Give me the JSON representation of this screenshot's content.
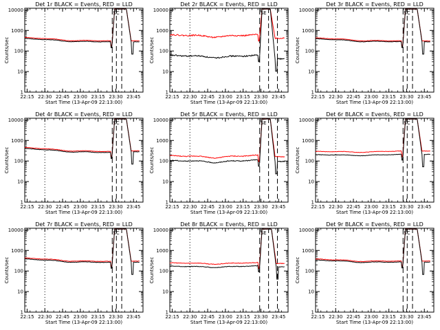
{
  "chart_data": {
    "type": "line",
    "x_axis": {
      "label": "Start Time (13-Apr-09 22:13:00)",
      "ticks": [
        "22:15",
        "22:30",
        "22:45",
        "23:00",
        "23:15",
        "23:30",
        "23:45"
      ],
      "tick_minutes": [
        2,
        17,
        32,
        47,
        62,
        77,
        92
      ],
      "range_minutes": [
        0,
        100
      ]
    },
    "y_axis": {
      "label": "Counts/sec",
      "scale": "log",
      "ticks": [
        "1",
        "10",
        "100",
        "1000",
        "10000"
      ],
      "range": [
        1,
        12000
      ]
    },
    "dotted_line_minutes": [
      17
    ],
    "dashed_line_minutes": [
      74,
      77.5,
      82
    ],
    "marker_labels": [
      "SC",
      "SE"
    ],
    "colors": {
      "events": "#000000",
      "lld": "#ff0000"
    },
    "panels": [
      {
        "title": "Det 1r BLACK = Events, RED = LLD",
        "marker": "SC",
        "base": 380,
        "end": 260,
        "wave": 0.12,
        "lld": 1.12,
        "noise": 0.02,
        "fall": 86,
        "post": 280,
        "dashed_minutes": [
          74,
          77.5,
          82
        ]
      },
      {
        "title": "Det 2r BLACK = Events, RED = LLD",
        "marker": "SE",
        "base": 55,
        "end": 55,
        "wave": 0.2,
        "lld": 10,
        "noise": 0.07,
        "fall": 85,
        "post": 42,
        "dashed_minutes": [
          76,
          83.5,
          91
        ]
      },
      {
        "title": "Det 3r BLACK = Events, RED = LLD",
        "marker": "SC",
        "base": 370,
        "end": 265,
        "wave": 0.12,
        "lld": 1.1,
        "noise": 0.02,
        "fall": 86,
        "post": 280,
        "dashed_minutes": [
          74,
          77.5,
          82
        ]
      },
      {
        "title": "Det 4r BLACK = Events, RED = LLD",
        "marker": "SC",
        "base": 380,
        "end": 240,
        "wave": 0.12,
        "lld": 1.12,
        "noise": 0.02,
        "fall": 86,
        "post": 280,
        "dashed_minutes": [
          74,
          77.5,
          82
        ]
      },
      {
        "title": "Det 5r BLACK = Events, RED = LLD",
        "marker": "SE",
        "base": 95,
        "end": 100,
        "wave": 0.2,
        "lld": 1.7,
        "noise": 0.04,
        "fall": 85,
        "post": 95,
        "dashed_minutes": [
          76,
          83.5,
          91
        ]
      },
      {
        "title": "Det 6r BLACK = Events, RED = LLD",
        "marker": "SC",
        "base": 190,
        "end": 200,
        "wave": 0.1,
        "lld": 1.45,
        "noise": 0.02,
        "fall": 86,
        "post": 210,
        "dashed_minutes": [
          74,
          77.5,
          82
        ]
      },
      {
        "title": "Det 7r BLACK = Events, RED = LLD",
        "marker": "SC",
        "base": 360,
        "end": 245,
        "wave": 0.12,
        "lld": 1.12,
        "noise": 0.02,
        "fall": 86,
        "post": 270,
        "dashed_minutes": [
          74,
          77.5,
          82
        ]
      },
      {
        "title": "Det 8r BLACK = Events, RED = LLD",
        "marker": "SE",
        "base": 160,
        "end": 165,
        "wave": 0.12,
        "lld": 1.45,
        "noise": 0.03,
        "fall": 86,
        "post": 160,
        "dashed_minutes": [
          76,
          83.5,
          91
        ]
      },
      {
        "title": "Det 9r BLACK = Events, RED = LLD",
        "marker": "SC",
        "base": 320,
        "end": 255,
        "wave": 0.12,
        "lld": 1.12,
        "noise": 0.02,
        "fall": 86,
        "post": 270,
        "dashed_minutes": [
          74,
          77.5,
          82
        ]
      }
    ]
  }
}
